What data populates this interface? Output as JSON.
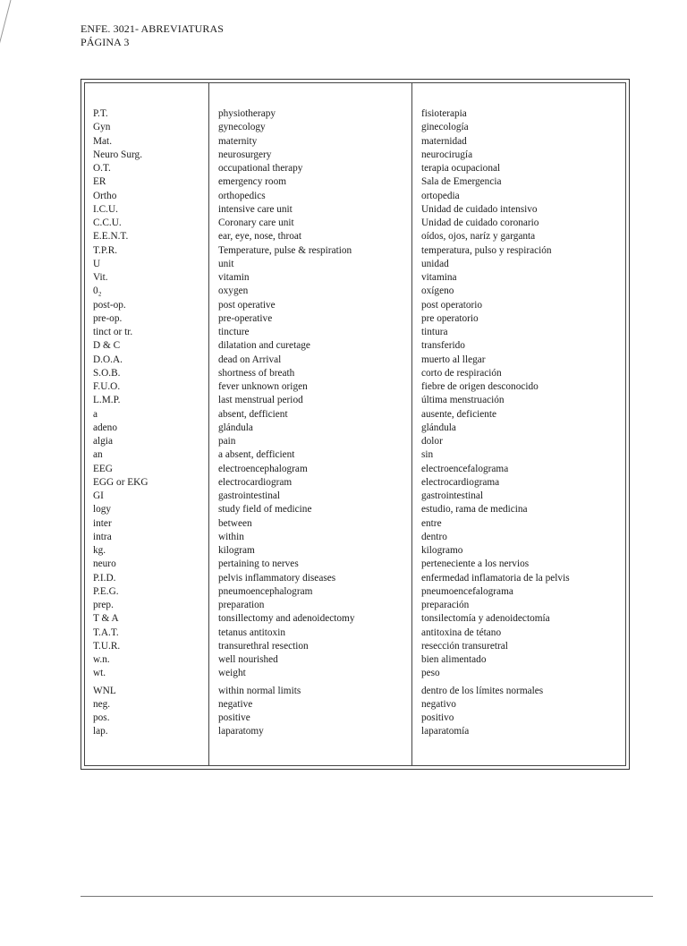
{
  "header": {
    "line1": "ENFE. 3021- ABREVIATURAS",
    "line2": "PÁGINA 3"
  },
  "table": {
    "rows": [
      [
        "P.T.",
        "physiotherapy",
        "fisioterapia"
      ],
      [
        "Gyn",
        "gynecology",
        "ginecología"
      ],
      [
        "Mat.",
        "maternity",
        "maternidad"
      ],
      [
        "Neuro Surg.",
        "neurosurgery",
        "neurocirugía"
      ],
      [
        "O.T.",
        "occupational therapy",
        "terapia ocupacional"
      ],
      [
        "ER",
        "emergency room",
        "Sala de Emergencia"
      ],
      [
        "Ortho",
        "orthopedics",
        "ortopedia"
      ],
      [
        "I.C.U.",
        "intensive care unit",
        "Unidad de cuidado intensivo"
      ],
      [
        "C.C.U.",
        "Coronary care unit",
        "Unidad de cuidado coronario"
      ],
      [
        "E.E.N.T.",
        "ear, eye, nose, throat",
        "oídos, ojos, naríz y garganta"
      ],
      [
        "T.P.R.",
        "Temperature, pulse & respiration",
        "temperatura, pulso y respiración"
      ],
      [
        "U",
        "unit",
        "unidad"
      ],
      [
        "Vit.",
        "vitamin",
        "vitamina"
      ],
      [
        "0₂",
        "oxygen",
        "oxígeno"
      ],
      [
        "post-op.",
        "post operative",
        "post operatorio"
      ],
      [
        "pre-op.",
        "pre-operative",
        "pre operatorio"
      ],
      [
        "tinct or tr.",
        "tincture",
        "tintura"
      ],
      [
        "D & C",
        "dilatation and curetage",
        "transferido"
      ],
      [
        "D.O.A.",
        "dead on Arrival",
        "muerto al llegar"
      ],
      [
        "S.O.B.",
        "shortness of breath",
        "corto de respiración"
      ],
      [
        "F.U.O.",
        "fever unknown origen",
        "fiebre de origen desconocido"
      ],
      [
        "L.M.P.",
        "last menstrual period",
        "última menstruación"
      ],
      [
        "a",
        "absent, defficient",
        "ausente, deficiente"
      ],
      [
        "adeno",
        "glándula",
        "glándula"
      ],
      [
        "algia",
        "pain",
        "dolor"
      ],
      [
        "an",
        "a absent, defficient",
        "sin"
      ],
      [
        "EEG",
        "electroencephalogram",
        "electroencefalograma"
      ],
      [
        "EGG or EKG",
        "electrocardiogram",
        "electrocardiograma"
      ],
      [
        "GI",
        "gastrointestinal",
        "gastrointestinal"
      ],
      [
        "logy",
        "study field of medicine",
        "estudio, rama de medicina"
      ],
      [
        "inter",
        "between",
        "entre"
      ],
      [
        "intra",
        "within",
        "dentro"
      ],
      [
        "kg.",
        "kilogram",
        "kilogramo"
      ],
      [
        "neuro",
        "pertaining to nerves",
        "perteneciente a los nervios"
      ],
      [
        "P.I.D.",
        "pelvis inflammatory diseases",
        "enfermedad inflamatoria de la  pelvis"
      ],
      [
        "P.E.G.",
        "pneumoencephalogram",
        "pneumoencefalograma"
      ],
      [
        "prep.",
        "preparation",
        "preparación"
      ],
      [
        "T & A",
        "tonsillectomy and adenoidectomy",
        "tonsilectomía y adenoidectomía"
      ],
      [
        "T.A.T.",
        "tetanus antitoxin",
        "antitoxina de tétano"
      ],
      [
        "T.U.R.",
        "transurethral resection",
        "resección transuretral"
      ],
      [
        "w.n.",
        "well nourished",
        "bien alimentado"
      ],
      [
        "wt.",
        "weight",
        "peso"
      ],
      [
        "WNL",
        "within normal limits",
        "dentro de los límites normales"
      ],
      [
        "neg.",
        "negative",
        "negativo"
      ],
      [
        "pos.",
        "positive",
        "positivo"
      ],
      [
        "lap.",
        "laparatomy",
        "laparatomía"
      ]
    ]
  }
}
